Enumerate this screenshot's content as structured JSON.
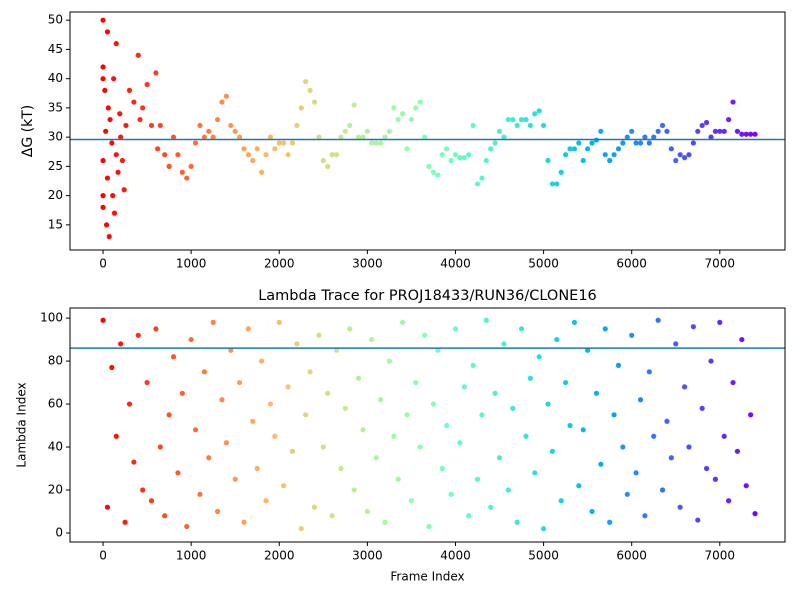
{
  "chart_data": [
    {
      "type": "scatter",
      "ylabel": "ΔG (kT)",
      "colormap": "rainbow_r",
      "x": [
        0,
        0,
        0,
        0,
        0,
        0,
        20,
        30,
        40,
        50,
        50,
        60,
        70,
        80,
        100,
        110,
        120,
        130,
        150,
        150,
        170,
        190,
        200,
        220,
        240,
        260,
        300,
        350,
        400,
        420,
        450,
        500,
        550,
        600,
        620,
        650,
        700,
        750,
        800,
        850,
        900,
        950,
        1000,
        1050,
        1100,
        1150,
        1200,
        1250,
        1300,
        1350,
        1400,
        1450,
        1500,
        1550,
        1600,
        1650,
        1700,
        1750,
        1800,
        1850,
        1900,
        1950,
        2000,
        2050,
        2100,
        2150,
        2200,
        2250,
        2300,
        2350,
        2400,
        2450,
        2500,
        2550,
        2600,
        2650,
        2700,
        2750,
        2800,
        2850,
        2900,
        2950,
        3000,
        3050,
        3100,
        3150,
        3200,
        3250,
        3300,
        3350,
        3400,
        3450,
        3500,
        3550,
        3600,
        3650,
        3700,
        3750,
        3800,
        3850,
        3900,
        3950,
        4000,
        4050,
        4100,
        4150,
        4200,
        4250,
        4300,
        4350,
        4400,
        4450,
        4500,
        4550,
        4600,
        4650,
        4700,
        4750,
        4800,
        4850,
        4900,
        4950,
        5000,
        5050,
        5100,
        5150,
        5200,
        5250,
        5300,
        5350,
        5400,
        5450,
        5500,
        5550,
        5600,
        5650,
        5700,
        5750,
        5800,
        5850,
        5900,
        5950,
        6000,
        6050,
        6100,
        6150,
        6200,
        6250,
        6300,
        6350,
        6400,
        6450,
        6500,
        6550,
        6600,
        6650,
        6700,
        6750,
        6800,
        6850,
        6900,
        6950,
        7000,
        7050,
        7100,
        7150,
        7200,
        7250,
        7300,
        7350,
        7400
      ],
      "values": [
        50,
        42,
        40,
        26,
        20,
        18,
        38,
        31,
        15,
        48,
        23,
        35,
        13,
        33,
        29,
        20,
        40,
        17,
        46,
        27,
        24,
        34,
        30,
        26,
        21,
        32,
        38,
        36,
        44,
        33,
        35,
        39,
        32,
        41,
        28,
        32,
        27,
        25,
        30,
        27,
        24,
        23,
        25,
        29,
        32,
        30,
        31,
        30,
        33,
        36,
        37,
        32,
        31,
        30,
        28,
        27,
        26,
        28,
        24,
        27,
        30,
        28,
        29,
        29,
        27,
        29,
        32,
        35,
        39.5,
        38,
        36,
        30,
        26,
        25,
        27,
        27,
        30,
        31,
        32,
        35.5,
        30,
        30,
        31,
        29,
        29,
        29,
        30,
        31,
        35,
        33,
        34,
        28,
        33,
        35,
        36,
        30,
        25,
        24,
        23.5,
        27,
        28,
        26,
        27,
        26.5,
        26.5,
        27,
        32,
        22,
        23,
        26,
        28,
        29,
        31,
        30,
        33,
        33,
        32,
        33,
        33,
        32,
        34,
        34.5,
        32,
        26,
        22,
        22,
        24,
        27,
        28,
        28,
        29,
        26,
        28,
        29,
        29.5,
        31,
        27,
        26,
        27,
        28,
        29,
        30,
        31,
        29,
        29,
        30,
        29,
        30,
        31,
        32,
        31,
        28,
        26,
        27,
        26.5,
        27,
        29,
        31,
        32,
        32.5,
        30,
        31,
        31,
        31,
        33,
        36,
        31,
        30.5,
        30.5,
        30.5,
        30.5
      ],
      "hline": 29.6,
      "hline_color": "#1f77b4",
      "xlim": [
        -375,
        7740
      ],
      "xticks": [
        0,
        1000,
        2000,
        3000,
        4000,
        5000,
        6000,
        7000
      ],
      "ylim": [
        10.7,
        51.4
      ],
      "yticks": [
        15,
        20,
        25,
        30,
        35,
        40,
        45,
        50
      ]
    },
    {
      "type": "scatter",
      "title": "Lambda Trace for PROJ18433/RUN36/CLONE16",
      "xlabel": "Frame Index",
      "ylabel": "Lambda Index",
      "colormap": "rainbow_r",
      "x": [
        0,
        50,
        100,
        150,
        200,
        250,
        300,
        350,
        400,
        450,
        500,
        550,
        600,
        650,
        700,
        750,
        800,
        850,
        900,
        950,
        1000,
        1050,
        1100,
        1150,
        1200,
        1250,
        1300,
        1350,
        1400,
        1450,
        1500,
        1550,
        1600,
        1650,
        1700,
        1750,
        1800,
        1850,
        1900,
        1950,
        2000,
        2050,
        2100,
        2150,
        2200,
        2250,
        2300,
        2350,
        2400,
        2450,
        2500,
        2550,
        2600,
        2650,
        2700,
        2750,
        2800,
        2850,
        2900,
        2950,
        3000,
        3050,
        3100,
        3150,
        3200,
        3250,
        3300,
        3350,
        3400,
        3450,
        3500,
        3550,
        3600,
        3650,
        3700,
        3750,
        3800,
        3850,
        3900,
        3950,
        4000,
        4050,
        4100,
        4150,
        4200,
        4250,
        4300,
        4350,
        4400,
        4450,
        4500,
        4550,
        4600,
        4650,
        4700,
        4750,
        4800,
        4850,
        4900,
        4950,
        5000,
        5050,
        5100,
        5150,
        5200,
        5250,
        5300,
        5350,
        5400,
        5450,
        5500,
        5550,
        5600,
        5650,
        5700,
        5750,
        5800,
        5850,
        5900,
        5950,
        6000,
        6050,
        6100,
        6150,
        6200,
        6250,
        6300,
        6350,
        6400,
        6450,
        6500,
        6550,
        6600,
        6650,
        6700,
        6750,
        6800,
        6850,
        6900,
        6950,
        7000,
        7050,
        7100,
        7150,
        7200,
        7250,
        7300,
        7350,
        7400
      ],
      "values": [
        99,
        12,
        77,
        45,
        88,
        5,
        60,
        33,
        92,
        20,
        70,
        15,
        95,
        40,
        8,
        55,
        82,
        28,
        65,
        3,
        90,
        48,
        18,
        75,
        35,
        98,
        10,
        62,
        42,
        85,
        25,
        70,
        5,
        95,
        52,
        30,
        80,
        15,
        60,
        45,
        98,
        22,
        68,
        38,
        88,
        2,
        55,
        75,
        12,
        92,
        40,
        65,
        8,
        85,
        30,
        58,
        95,
        20,
        72,
        48,
        10,
        90,
        35,
        62,
        5,
        80,
        45,
        25,
        98,
        55,
        15,
        70,
        40,
        92,
        3,
        60,
        85,
        30,
        50,
        18,
        95,
        42,
        68,
        8,
        78,
        25,
        55,
        99,
        12,
        65,
        35,
        88,
        20,
        58,
        5,
        95,
        45,
        72,
        28,
        82,
        2,
        60,
        38,
        90,
        15,
        70,
        50,
        98,
        22,
        48,
        85,
        10,
        65,
        32,
        95,
        5,
        55,
        78,
        40,
        18,
        92,
        28,
        62,
        8,
        75,
        45,
        99,
        20,
        52,
        35,
        88,
        12,
        68,
        40,
        96,
        6,
        58,
        30,
        80,
        25,
        98,
        45,
        15,
        70,
        38,
        90,
        22,
        55,
        9
      ],
      "hline": 86,
      "hline_color": "#1f77b4",
      "xlim": [
        -375,
        7740
      ],
      "xticks": [
        0,
        1000,
        2000,
        3000,
        4000,
        5000,
        6000,
        7000
      ],
      "ylim": [
        -4.2,
        104.7
      ],
      "yticks": [
        0,
        20,
        40,
        60,
        80,
        100
      ]
    }
  ]
}
